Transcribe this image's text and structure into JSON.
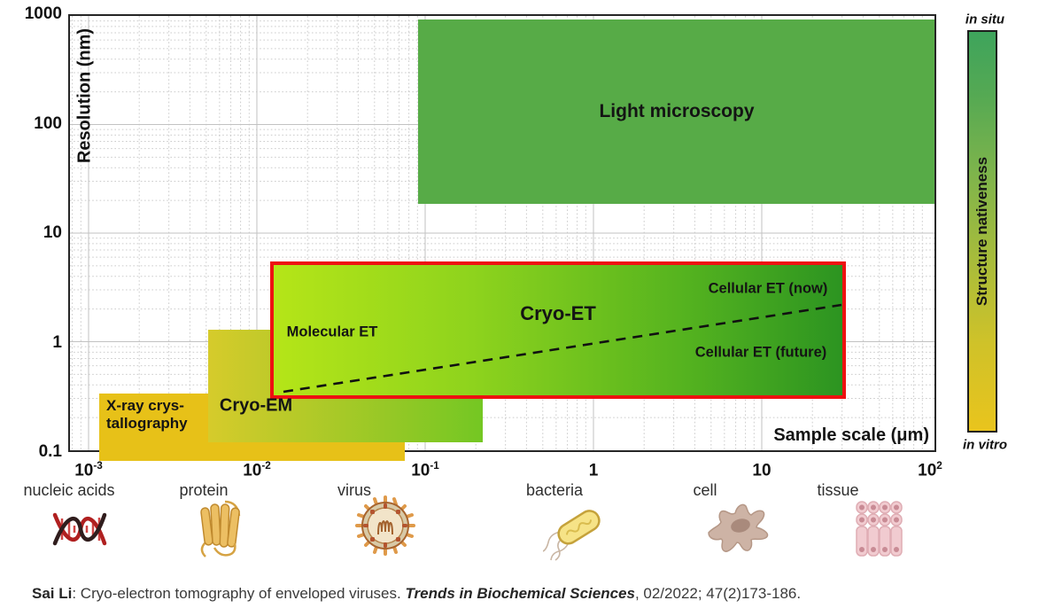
{
  "chart_data": {
    "type": "area",
    "subtype": "log-log region annotation chart",
    "xlabel": "Sample scale (μm)",
    "ylabel": "Resolution (nm)",
    "xlim_um": [
      0.0006,
      100
    ],
    "ylim_nm": [
      0.1,
      1000
    ],
    "grid": "log major solid + minor dotted",
    "x_ticks": [
      {
        "base": "10",
        "sup": "-3"
      },
      {
        "base": "10",
        "sup": "-2"
      },
      {
        "base": "10",
        "sup": "-1"
      },
      {
        "base": "1",
        "sup": ""
      },
      {
        "base": "10",
        "sup": ""
      },
      {
        "base": "10",
        "sup": "2"
      }
    ],
    "y_ticks": [
      "1000",
      "100",
      "10",
      "1",
      "0.1"
    ],
    "regions": [
      {
        "label": "Light microscopy",
        "x_um": [
          0.09,
          100
        ],
        "y_nm": [
          20,
          1000
        ],
        "fill": "#57ab47"
      },
      {
        "label": "Cryo-ET",
        "x_um": [
          0.012,
          30
        ],
        "y_nm": [
          0.32,
          5.7
        ],
        "fill_gradient": [
          "#b5e518",
          "#2c9421"
        ],
        "border_color": "#ee1111",
        "sublabels": {
          "molecular": "Molecular ET",
          "cellular_now": "Cellular ET (now)",
          "cellular_future": "Cellular ET (future)"
        }
      },
      {
        "label": "Cryo-EM",
        "x_um": [
          0.005,
          0.21
        ],
        "y_nm": [
          0.13,
          1.4
        ],
        "fill_gradient": [
          "#d6cb2b",
          "#74c723"
        ]
      },
      {
        "label": "X-ray crystallography",
        "label_line1": "X-ray crys-",
        "label_line2": "tallography",
        "x_um": [
          0.0011,
          0.074
        ],
        "y_nm": [
          0.1,
          0.36
        ],
        "fill": "#e7c118"
      }
    ],
    "dashed_line": {
      "from_um_nm": [
        0.014,
        0.37
      ],
      "to_um_nm": [
        29,
        2.3
      ],
      "meaning": "boundary between Cellular ET (now) above and Cellular ET (future) below"
    },
    "colorbar": {
      "axis_label": "Structure nativeness",
      "top_label": "in situ",
      "bottom_label": "in vitro",
      "top_color": "#3ea45c",
      "bottom_color": "#e9c41d"
    }
  },
  "specimens": [
    {
      "label": "nucleic acids",
      "icon": "dna-icon"
    },
    {
      "label": "protein",
      "icon": "protein-icon"
    },
    {
      "label": "virus",
      "icon": "virus-icon"
    },
    {
      "label": "bacteria",
      "icon": "bacteria-icon"
    },
    {
      "label": "cell",
      "icon": "cell-icon"
    },
    {
      "label": "tissue",
      "icon": "tissue-icon"
    }
  ],
  "citation": {
    "author": "Sai Li",
    "title": ": Cryo-electron tomography of enveloped viruses. ",
    "journal": "Trends in Biochemical Sciences",
    "tail": ", 02/2022; 47(2)173-186."
  }
}
